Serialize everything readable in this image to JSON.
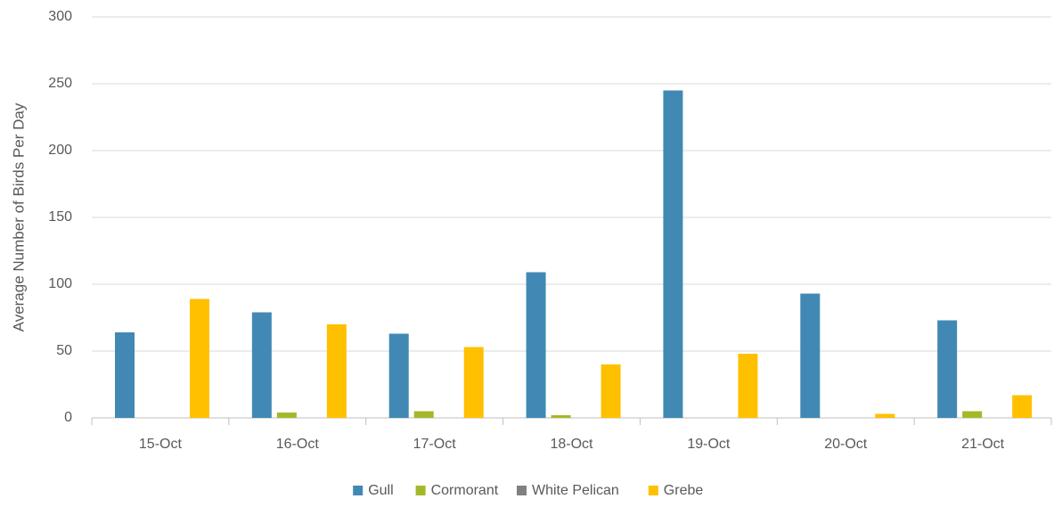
{
  "chart_data": {
    "type": "bar",
    "y_label": "Average Number of Birds Per Day",
    "categories": [
      "15-Oct",
      "16-Oct",
      "17-Oct",
      "18-Oct",
      "19-Oct",
      "20-Oct",
      "21-Oct"
    ],
    "series": [
      {
        "name": "Gull",
        "color": "#4189b4",
        "values": [
          64,
          79,
          63,
          109,
          245,
          93,
          73
        ]
      },
      {
        "name": "Cormorant",
        "color": "#a5b82a",
        "values": [
          0,
          4,
          5,
          2,
          0,
          0,
          5
        ]
      },
      {
        "name": "White Pelican",
        "color": "#808080",
        "values": [
          0,
          0,
          0,
          0,
          0,
          0,
          0
        ]
      },
      {
        "name": "Grebe",
        "color": "#ffc000",
        "values": [
          89,
          70,
          53,
          40,
          48,
          3,
          17
        ]
      }
    ],
    "ylim": [
      0,
      300
    ],
    "yticks": [
      0,
      50,
      100,
      150,
      200,
      250,
      300
    ],
    "grid": true,
    "legend": "bottom"
  }
}
